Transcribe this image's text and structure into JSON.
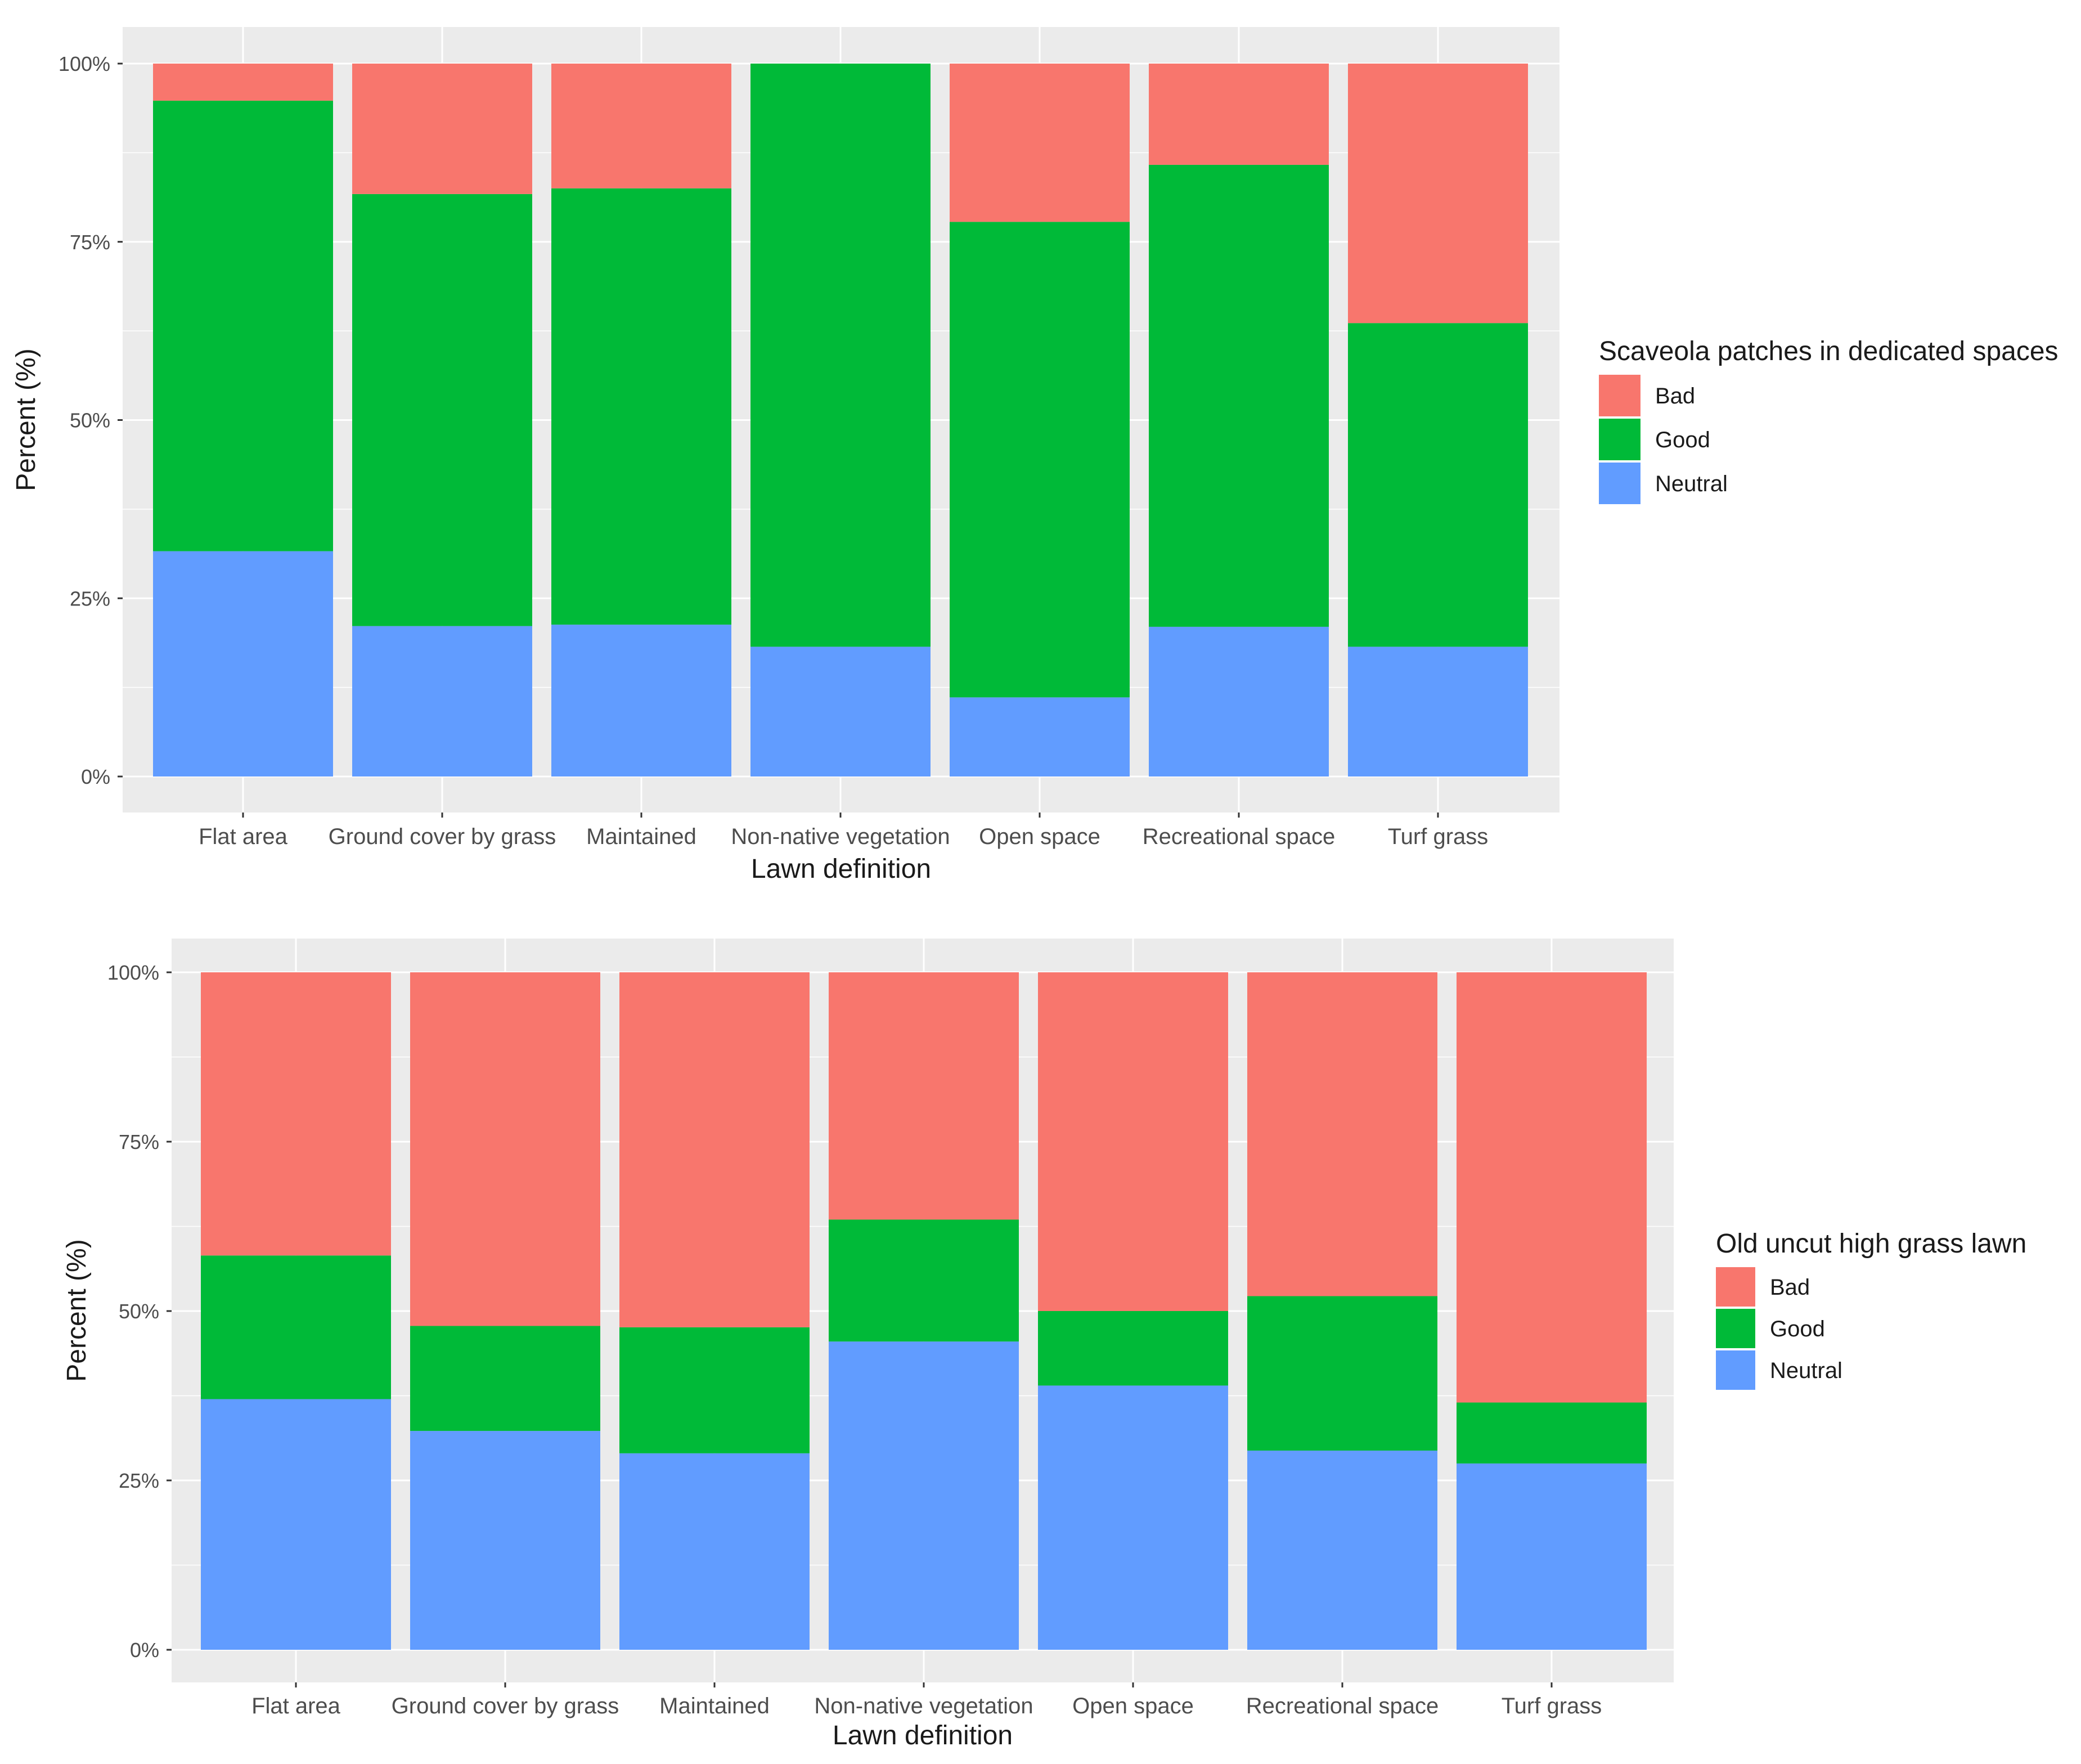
{
  "chart_data": [
    {
      "type": "bar",
      "stacked": true,
      "percent": true,
      "categories": [
        "Flat area",
        "Ground cover by grass",
        "Maintained",
        "Non-native vegetation",
        "Open space",
        "Recreational space",
        "Turf grass"
      ],
      "series": [
        {
          "name": "Neutral",
          "color": "#619CFF",
          "values": [
            31.6,
            21.1,
            21.3,
            18.2,
            11.1,
            21.0,
            18.2
          ]
        },
        {
          "name": "Good",
          "color": "#00BA38",
          "values": [
            63.2,
            60.6,
            61.2,
            81.8,
            66.7,
            64.8,
            45.4
          ]
        },
        {
          "name": "Bad",
          "color": "#F8766D",
          "values": [
            5.2,
            18.3,
            17.5,
            0.0,
            22.2,
            14.2,
            36.4
          ]
        }
      ],
      "legend_order": [
        "Bad",
        "Good",
        "Neutral"
      ],
      "legend_title": "Scaveola patches in dedicated spaces",
      "legend_position": "right",
      "xlabel": "Lawn definition",
      "ylabel": "Percent (%)",
      "ylim": [
        0,
        100
      ],
      "yticks": [
        "0%",
        "25%",
        "50%",
        "75%",
        "100%"
      ],
      "grid": true,
      "background": "#EBEBEB"
    },
    {
      "type": "bar",
      "stacked": true,
      "percent": true,
      "categories": [
        "Flat area",
        "Ground cover by grass",
        "Maintained",
        "Non-native vegetation",
        "Open space",
        "Recreational space",
        "Turf grass"
      ],
      "series": [
        {
          "name": "Neutral",
          "color": "#619CFF",
          "values": [
            37.0,
            32.3,
            29.0,
            45.5,
            39.0,
            29.4,
            27.5
          ]
        },
        {
          "name": "Good",
          "color": "#00BA38",
          "values": [
            21.2,
            15.5,
            18.6,
            18.0,
            11.0,
            22.8,
            9.0
          ]
        },
        {
          "name": "Bad",
          "color": "#F8766D",
          "values": [
            41.8,
            52.2,
            52.4,
            36.5,
            50.0,
            47.8,
            63.5
          ]
        }
      ],
      "legend_order": [
        "Bad",
        "Good",
        "Neutral"
      ],
      "legend_title": "Old uncut high grass lawn",
      "legend_position": "right",
      "xlabel": "Lawn definition",
      "ylabel": "Percent (%)",
      "ylim": [
        0,
        100
      ],
      "yticks": [
        "0%",
        "25%",
        "50%",
        "75%",
        "100%"
      ],
      "grid": true,
      "background": "#EBEBEB"
    }
  ]
}
